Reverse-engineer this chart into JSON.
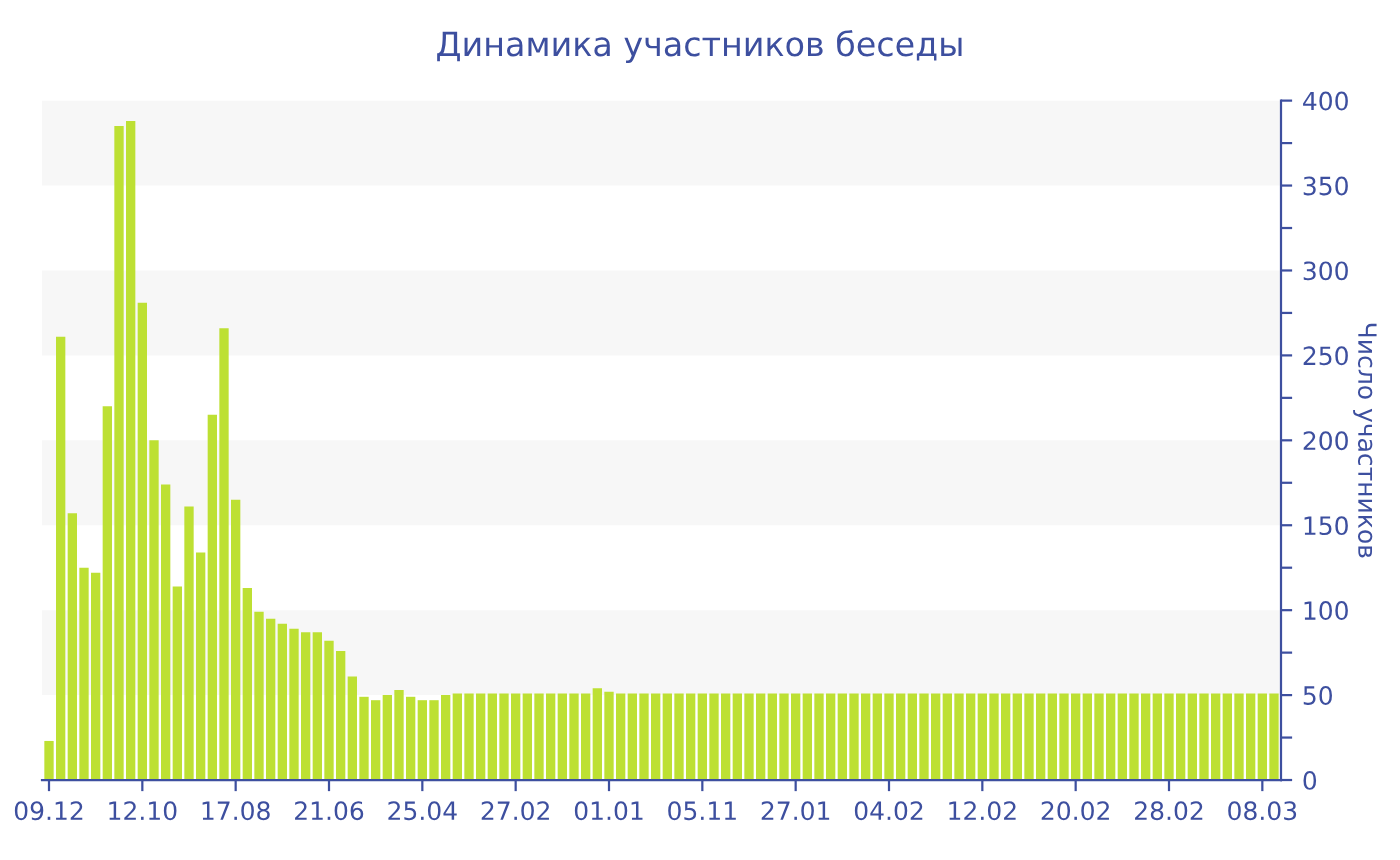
{
  "chart_data": {
    "type": "bar",
    "title": "Динамика участников беседы",
    "ylabel": "Число участников",
    "categories": [
      "09.12",
      null,
      null,
      null,
      null,
      null,
      null,
      null,
      "12.10",
      null,
      null,
      null,
      null,
      null,
      null,
      null,
      "17.08",
      null,
      null,
      null,
      null,
      null,
      null,
      null,
      "21.06",
      null,
      null,
      null,
      null,
      null,
      null,
      null,
      "25.04",
      null,
      null,
      null,
      null,
      null,
      null,
      null,
      "27.02",
      null,
      null,
      null,
      null,
      null,
      null,
      null,
      "01.01",
      null,
      null,
      null,
      null,
      null,
      null,
      null,
      "05.11",
      null,
      null,
      null,
      null,
      null,
      null,
      null,
      "27.01",
      null,
      null,
      null,
      null,
      null,
      null,
      null,
      "04.02",
      null,
      null,
      null,
      null,
      null,
      null,
      null,
      "12.02",
      null,
      null,
      null,
      null,
      null,
      null,
      null,
      "20.02",
      null,
      null,
      null,
      null,
      null,
      null,
      null,
      "28.02",
      null,
      null,
      null,
      null,
      null,
      null,
      null,
      "08.03",
      null
    ],
    "values": [
      23,
      261,
      157,
      125,
      122,
      220,
      385,
      388,
      281,
      200,
      174,
      114,
      161,
      134,
      215,
      266,
      165,
      113,
      99,
      95,
      92,
      89,
      87,
      87,
      82,
      76,
      61,
      49,
      47,
      50,
      53,
      49,
      47,
      47,
      50,
      51,
      51,
      51,
      51,
      51,
      51,
      51,
      51,
      51,
      51,
      51,
      51,
      54,
      52,
      51,
      51,
      51,
      51,
      51,
      51,
      51,
      51,
      51,
      51,
      51,
      51,
      51,
      51,
      51,
      51,
      51,
      51,
      51,
      51,
      51,
      51,
      51,
      51,
      51,
      51,
      51,
      51,
      51,
      51,
      51,
      51,
      51,
      51,
      51,
      51,
      51,
      51,
      51,
      51,
      51,
      51,
      51,
      51,
      51,
      51,
      51,
      51,
      51,
      51,
      51,
      51,
      51,
      51,
      51,
      51,
      51
    ],
    "color": "#bde033",
    "ylim": [
      0,
      400
    ],
    "yticks": [
      0,
      {
        "value": 25,
        "label": null
      },
      50,
      {
        "value": 75,
        "label": null
      },
      100,
      {
        "value": 125,
        "label": null
      },
      150,
      {
        "value": 175,
        "label": null
      },
      200,
      {
        "value": 225,
        "label": null
      },
      250,
      {
        "value": 275,
        "label": null
      },
      300,
      {
        "value": 325,
        "label": null
      },
      350,
      {
        "value": 375,
        "label": null
      },
      400
    ],
    "bands": [
      {
        "axis": "y",
        "from": 50,
        "to": 100,
        "color": "#f7f7f7"
      },
      {
        "axis": "y",
        "from": 150,
        "to": 200,
        "color": "#f7f7f7"
      },
      {
        "axis": "y",
        "from": 250,
        "to": 300,
        "color": "#f7f7f7"
      },
      {
        "axis": "y",
        "from": 350,
        "to": 400,
        "color": "#f7f7f7"
      }
    ],
    "grid": false
  }
}
